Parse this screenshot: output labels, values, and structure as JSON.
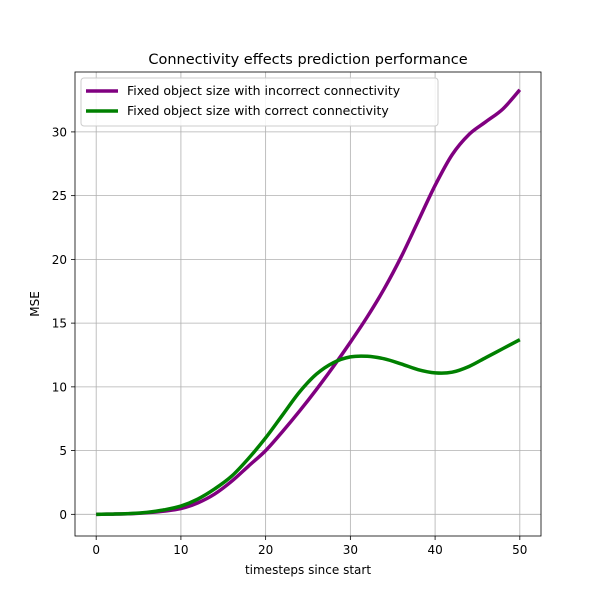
{
  "chart_data": {
    "type": "line",
    "title": "Connectivity effects prediction performance",
    "xlabel": "timesteps since start",
    "ylabel": "MSE",
    "xlim": [
      -2.5,
      52.5
    ],
    "ylim": [
      -1.7,
      34.7
    ],
    "xticks": [
      0,
      10,
      20,
      30,
      40,
      50
    ],
    "yticks": [
      0,
      5,
      10,
      15,
      20,
      25,
      30
    ],
    "grid": true,
    "legend_position": "top-left",
    "series": [
      {
        "name": "Fixed object size with incorrect connectivity",
        "color": "#800080",
        "x": [
          0,
          2,
          4,
          6,
          8,
          10,
          12,
          14,
          16,
          18,
          20,
          22,
          24,
          26,
          28,
          30,
          32,
          34,
          36,
          38,
          40,
          42,
          44,
          46,
          48,
          50
        ],
        "y": [
          0,
          0.02,
          0.05,
          0.12,
          0.25,
          0.45,
          0.9,
          1.6,
          2.6,
          3.8,
          5.0,
          6.5,
          8.1,
          9.8,
          11.6,
          13.5,
          15.5,
          17.7,
          20.2,
          23.0,
          25.8,
          28.2,
          29.8,
          30.8,
          31.8,
          33.3
        ]
      },
      {
        "name": "Fixed object size with correct connectivity",
        "color": "#008000",
        "x": [
          0,
          2,
          4,
          6,
          8,
          10,
          12,
          14,
          16,
          18,
          20,
          22,
          24,
          26,
          28,
          30,
          32,
          34,
          36,
          38,
          40,
          42,
          44,
          46,
          48,
          50
        ],
        "y": [
          0,
          0.02,
          0.06,
          0.15,
          0.35,
          0.65,
          1.2,
          2.0,
          3.0,
          4.4,
          6.0,
          7.8,
          9.6,
          11.0,
          11.9,
          12.35,
          12.4,
          12.2,
          11.8,
          11.35,
          11.1,
          11.15,
          11.6,
          12.3,
          13.0,
          13.7
        ]
      }
    ]
  }
}
